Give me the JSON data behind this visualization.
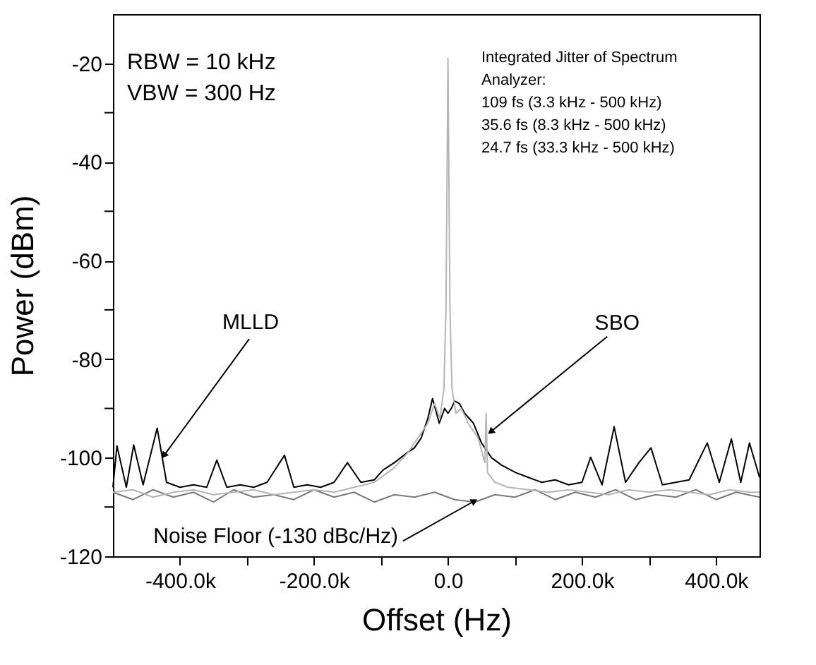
{
  "chart_data": {
    "type": "line",
    "xlabel": "Offset (Hz)",
    "ylabel": "Power (dBm)",
    "xlim": [
      -500000,
      465000
    ],
    "ylim": [
      -120,
      -10
    ],
    "xticks": [
      {
        "value": -400000,
        "label": "-400.0k"
      },
      {
        "value": -300000,
        "label": null
      },
      {
        "value": -200000,
        "label": "-200.0k"
      },
      {
        "value": -100000,
        "label": null
      },
      {
        "value": 0,
        "label": "0.0"
      },
      {
        "value": 100000,
        "label": null
      },
      {
        "value": 200000,
        "label": "200.0k"
      },
      {
        "value": 300000,
        "label": null
      },
      {
        "value": 400000,
        "label": "400.0k"
      }
    ],
    "yticks": [
      -120,
      {
        "value": -110,
        "label": null
      },
      -100,
      {
        "value": -90,
        "label": null
      },
      -80,
      {
        "value": -70,
        "label": null
      },
      -60,
      {
        "value": -50,
        "label": null
      },
      -40,
      {
        "value": -30,
        "label": null
      },
      -20
    ],
    "grid": false,
    "line_style": "solid",
    "marker": "none",
    "series": [
      {
        "color": "#7a7a7a",
        "x": [
          -500000,
          -470000,
          -440000,
          -410000,
          -380000,
          -350000,
          -320000,
          -290000,
          -260000,
          -230000,
          -200000,
          -170000,
          -140000,
          -110000,
          -80000,
          -50000,
          -20000,
          10000,
          40000,
          70000,
          100000,
          130000,
          160000,
          190000,
          220000,
          250000,
          280000,
          310000,
          340000,
          370000,
          400000,
          430000,
          465000
        ],
        "values": [
          -107,
          -108.5,
          -106.5,
          -108,
          -107,
          -109,
          -106.5,
          -108,
          -107.5,
          -108.5,
          -106.5,
          -108,
          -107,
          -109,
          -107.5,
          -108,
          -107,
          -108.5,
          -109,
          -107.5,
          -108,
          -106.5,
          -108.5,
          -107,
          -108,
          -106.5,
          -108.5,
          -107.5,
          -108,
          -106.5,
          -108.5,
          -107,
          -108
        ]
      },
      {
        "color": "#000000",
        "x": [
          -500000,
          -494000,
          -480000,
          -469000,
          -455000,
          -434000,
          -420000,
          -400000,
          -380000,
          -360000,
          -345000,
          -330000,
          -310000,
          -290000,
          -270000,
          -244000,
          -230000,
          -210000,
          -190000,
          -170000,
          -150000,
          -130000,
          -110000,
          -97000,
          -80000,
          -61000,
          -50000,
          -40000,
          -30000,
          -23000,
          -13000,
          -5000,
          0,
          5000,
          10000,
          17000,
          25000,
          38000,
          50000,
          65000,
          80000,
          101000,
          120000,
          140000,
          160000,
          180000,
          200000,
          213000,
          230000,
          248000,
          265000,
          285000,
          303000,
          320000,
          340000,
          360000,
          387000,
          405000,
          423000,
          437000,
          450000,
          465000
        ],
        "values": [
          -106,
          -97.6,
          -106,
          -97.4,
          -105.5,
          -94,
          -105,
          -106,
          -105.5,
          -106,
          -100.5,
          -106,
          -105.5,
          -106,
          -105,
          -99.5,
          -106,
          -105.5,
          -106,
          -105,
          -101,
          -105,
          -104.5,
          -102.5,
          -101,
          -99,
          -98,
          -96,
          -92,
          -88,
          -93,
          -90,
          -91,
          -90,
          -88.5,
          -89,
          -91,
          -93,
          -97,
          -100,
          -101.5,
          -103,
          -104,
          -105,
          -104.5,
          -105.5,
          -105,
          -99.9,
          -105.5,
          -93.7,
          -105,
          -101,
          -98,
          -105.5,
          -105,
          -104.5,
          -97,
          -105,
          -96.2,
          -105,
          -97,
          -104
        ]
      },
      {
        "color": "#b4b4b4",
        "x": [
          -500000,
          -470000,
          -440000,
          -410000,
          -380000,
          -350000,
          -320000,
          -290000,
          -260000,
          -230000,
          -200000,
          -170000,
          -140000,
          -110000,
          -80000,
          -60000,
          -45000,
          -30000,
          -20000,
          -12000,
          -6000,
          -3000,
          -1500,
          0,
          1500,
          3000,
          6000,
          12000,
          20000,
          30000,
          45000,
          55000,
          57000,
          59000,
          70000,
          90000,
          120000,
          150000,
          180000,
          210000,
          240000,
          270000,
          300000,
          330000,
          360000,
          390000,
          420000,
          450000,
          465000
        ],
        "values": [
          -107,
          -106.5,
          -108,
          -107,
          -106.5,
          -107.5,
          -107,
          -106.5,
          -107.5,
          -107,
          -106.5,
          -107,
          -106,
          -105,
          -102,
          -99,
          -96,
          -93,
          -89,
          -92,
          -86,
          -70,
          -45,
          -19,
          -45,
          -70,
          -86,
          -91,
          -90,
          -93,
          -96,
          -101,
          -91,
          -103,
          -105,
          -106,
          -106.5,
          -107,
          -106.5,
          -107,
          -107.5,
          -106.5,
          -107,
          -106.5,
          -107,
          -107.5,
          -106.5,
          -107,
          -107
        ]
      }
    ],
    "annotations": [
      "RBW = 10 kHz",
      "VBW = 300 Hz",
      "Integrated Jitter of Spectrum",
      "Analyzer:",
      "109 fs (3.3 kHz - 500 kHz)",
      "35.6 fs (8.3 kHz - 500 kHz)",
      "24.7 fs (33.3 kHz - 500 kHz)",
      {
        "text": "MLLD",
        "x": -423000,
        "y": -99.4
      },
      {
        "text": "SBO",
        "x": 65000,
        "y": -94.6
      },
      {
        "text": "Noise Floor (-130 dBc/Hz)",
        "x": 38000,
        "y": -108.9
      }
    ]
  }
}
